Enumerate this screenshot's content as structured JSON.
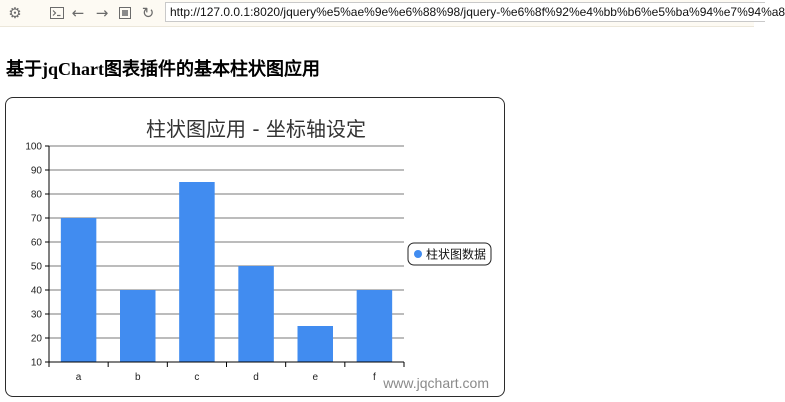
{
  "browser": {
    "settings_icon": "gear-icon",
    "devtools_icon": "console-icon",
    "back_icon": "arrow-left-icon",
    "forward_icon": "arrow-right-icon",
    "stop_icon": "stop-square-icon",
    "reload_icon": "reload-icon",
    "url": "http://127.0.0.1:8020/jquery%e5%ae%9e%e6%88%98/jquery-%e6%8f%92%e4%bb%b6%e5%ba%94%e7%94%a8"
  },
  "page": {
    "heading": "基于jqChart图表插件的基本柱状图应用"
  },
  "watermark": "www.jqchart.com",
  "colors": {
    "bar": "#418CF0",
    "grid": "#7a7a7a",
    "axis": "#000000",
    "legend_border": "#222222"
  },
  "chart_data": {
    "type": "bar",
    "title": "柱状图应用 - 坐标轴设定",
    "categories": [
      "a",
      "b",
      "c",
      "d",
      "e",
      "f"
    ],
    "series": [
      {
        "name": "柱状图数据",
        "values": [
          70,
          40,
          85,
          50,
          25,
          40
        ]
      }
    ],
    "ylim": [
      10,
      100
    ],
    "yticks": [
      10,
      20,
      30,
      40,
      50,
      60,
      70,
      80,
      90,
      100
    ],
    "grid": true,
    "legend": "right"
  }
}
